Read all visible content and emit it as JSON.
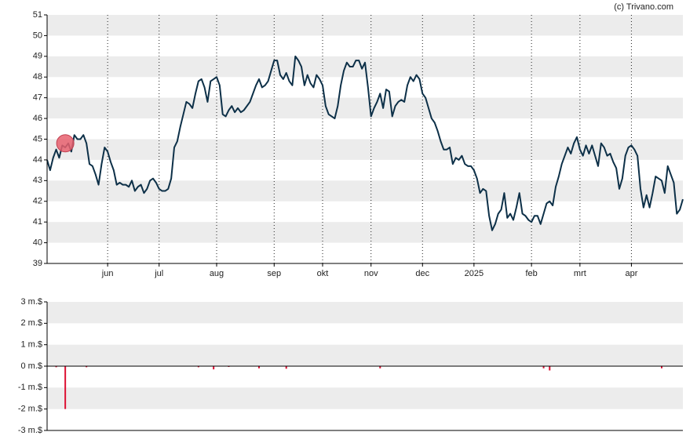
{
  "chart_data": [
    {
      "type": "line",
      "annotation": "(c) Trivano.com",
      "color": "#0d3048",
      "grid": true,
      "xlim": [
        0,
        210
      ],
      "ylim": [
        39,
        51
      ],
      "yticks": [
        39,
        40,
        41,
        42,
        43,
        44,
        45,
        46,
        47,
        48,
        49,
        50,
        51
      ],
      "xticks": [
        {
          "value": 20,
          "label": "jun"
        },
        {
          "value": 37,
          "label": "jul"
        },
        {
          "value": 56,
          "label": "aug"
        },
        {
          "value": 75,
          "label": "sep"
        },
        {
          "value": 91,
          "label": "okt"
        },
        {
          "value": 107,
          "label": "nov"
        },
        {
          "value": 124,
          "label": "dec"
        },
        {
          "value": 141,
          "label": "2025"
        },
        {
          "value": 160,
          "label": "feb"
        },
        {
          "value": 176,
          "label": "mrt"
        },
        {
          "value": 193,
          "label": "apr"
        }
      ],
      "markers": [
        {
          "x": 6,
          "y": 44.8,
          "color": "#e8606f"
        }
      ],
      "values": [
        44.0,
        43.5,
        44.1,
        44.5,
        44.1,
        44.7,
        44.6,
        44.8,
        44.4,
        45.2,
        45.0,
        45.0,
        45.2,
        44.8,
        43.8,
        43.7,
        43.3,
        42.8,
        43.8,
        44.6,
        44.4,
        43.9,
        43.5,
        42.8,
        42.9,
        42.8,
        42.8,
        42.7,
        43.0,
        42.5,
        42.7,
        42.8,
        42.4,
        42.6,
        43.0,
        43.1,
        42.9,
        42.6,
        42.5,
        42.5,
        42.6,
        43.1,
        44.6,
        44.9,
        45.6,
        46.2,
        46.8,
        46.7,
        46.5,
        47.2,
        47.8,
        47.9,
        47.5,
        46.8,
        47.8,
        47.9,
        48.0,
        47.6,
        46.2,
        46.1,
        46.4,
        46.6,
        46.3,
        46.5,
        46.3,
        46.4,
        46.6,
        46.8,
        47.2,
        47.6,
        47.9,
        47.5,
        47.6,
        47.8,
        48.3,
        48.8,
        48.8,
        48.1,
        47.9,
        48.2,
        47.8,
        47.6,
        49.0,
        48.8,
        48.5,
        47.6,
        48.1,
        47.7,
        47.5,
        48.1,
        47.9,
        47.6,
        46.6,
        46.2,
        46.1,
        46.0,
        46.6,
        47.6,
        48.3,
        48.7,
        48.5,
        48.5,
        48.8,
        48.8,
        48.4,
        48.7,
        47.5,
        46.1,
        46.5,
        46.8,
        47.2,
        46.5,
        47.4,
        47.3,
        46.1,
        46.6,
        46.8,
        46.9,
        46.8,
        47.6,
        48.0,
        47.8,
        48.1,
        47.9,
        47.2,
        47.0,
        46.5,
        46.0,
        45.8,
        45.4,
        44.9,
        44.5,
        44.5,
        44.6,
        43.8,
        44.1,
        44.0,
        44.2,
        43.8,
        43.7,
        43.7,
        43.5,
        43.1,
        42.4,
        42.6,
        42.5,
        41.3,
        40.6,
        40.9,
        41.4,
        41.6,
        42.4,
        41.2,
        41.4,
        41.1,
        41.7,
        42.4,
        41.4,
        41.3,
        41.1,
        41.0,
        41.3,
        41.3,
        40.9,
        41.4,
        41.9,
        42.0,
        41.8,
        42.7,
        43.2,
        43.8,
        44.2,
        44.6,
        44.3,
        44.8,
        45.1,
        44.5,
        44.2,
        44.7,
        44.3,
        44.7,
        44.2,
        43.7,
        44.8,
        44.6,
        44.2,
        44.3,
        43.9,
        43.6,
        42.6,
        43.1,
        44.2,
        44.6,
        44.7,
        44.5,
        44.2,
        42.6,
        41.7,
        42.3,
        41.7,
        42.4,
        43.2,
        43.1,
        43.0,
        42.4,
        43.7,
        43.3,
        42.9,
        41.4,
        41.6,
        42.1
      ]
    },
    {
      "type": "bar",
      "color": "#dd1133",
      "grid": true,
      "xlim": [
        0,
        210
      ],
      "ylim": [
        -3,
        3
      ],
      "yticks": [
        {
          "value": -3,
          "label": "-3 m.$"
        },
        {
          "value": -2,
          "label": "-2 m.$"
        },
        {
          "value": -1,
          "label": "-1 m.$"
        },
        {
          "value": 0,
          "label": "0 m.$"
        },
        {
          "value": 1,
          "label": "1 m.$"
        },
        {
          "value": 2,
          "label": "2 m.$"
        },
        {
          "value": 3,
          "label": "3 m.$"
        }
      ],
      "x": [
        3,
        6,
        13,
        50,
        55,
        60,
        70,
        79,
        110,
        164,
        166,
        203
      ],
      "values": [
        -0.05,
        -2,
        -0.05,
        -0.05,
        -0.15,
        -0.03,
        -0.1,
        -0.12,
        -0.1,
        -0.1,
        -0.2,
        -0.1
      ]
    }
  ]
}
